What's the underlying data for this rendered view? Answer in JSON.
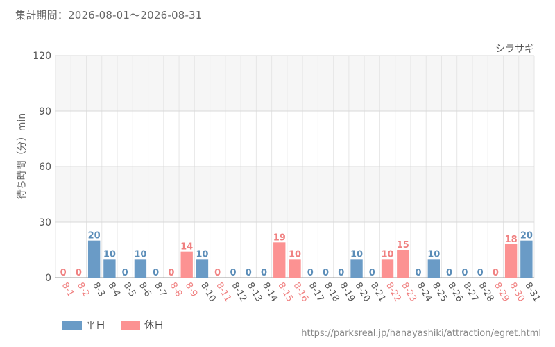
{
  "period_label": "集計期間：2026-08-01～2026-08-31",
  "footer_url": "https://parksreal.jp/hanayashiki/attraction/egret.html",
  "colors": {
    "weekday": "#6a9bc6",
    "holiday": "#fc9292",
    "weekday_text": "#5b8db8",
    "holiday_text": "#f08080"
  },
  "chart_data": {
    "type": "bar",
    "title": "シラサギ",
    "ylabel": "待ち時間（分）min",
    "xlabel": "",
    "ylim": [
      0,
      120
    ],
    "yticks": [
      0,
      30,
      60,
      90,
      120
    ],
    "categories": [
      "8-1",
      "8-2",
      "8-3",
      "8-4",
      "8-5",
      "8-6",
      "8-7",
      "8-8",
      "8-9",
      "8-10",
      "8-11",
      "8-12",
      "8-13",
      "8-14",
      "8-15",
      "8-16",
      "8-17",
      "8-18",
      "8-19",
      "8-20",
      "8-21",
      "8-22",
      "8-23",
      "8-24",
      "8-25",
      "8-26",
      "8-27",
      "8-28",
      "8-29",
      "8-30",
      "8-31"
    ],
    "values": [
      0,
      0,
      20,
      10,
      0,
      10,
      0,
      0,
      14,
      10,
      0,
      0,
      0,
      0,
      19,
      10,
      0,
      0,
      0,
      10,
      0,
      10,
      15,
      0,
      10,
      0,
      0,
      0,
      0,
      18,
      20
    ],
    "day_type": [
      "h",
      "h",
      "w",
      "w",
      "w",
      "w",
      "w",
      "h",
      "h",
      "w",
      "h",
      "w",
      "w",
      "w",
      "h",
      "h",
      "w",
      "w",
      "w",
      "w",
      "w",
      "h",
      "h",
      "w",
      "w",
      "w",
      "w",
      "w",
      "h",
      "h",
      "w"
    ],
    "legend": [
      {
        "key": "w",
        "label": "平日"
      },
      {
        "key": "h",
        "label": "休日"
      }
    ],
    "legend_position": "bottom-left",
    "grid": true
  }
}
